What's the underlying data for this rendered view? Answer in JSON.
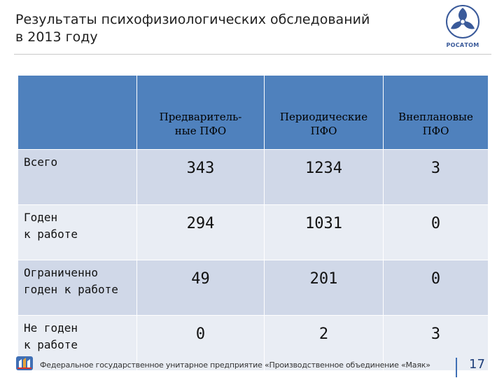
{
  "slide": {
    "title_line1": "Результаты психофизиологических обследований",
    "title_line2": "в 2013 году"
  },
  "logo": {
    "icon": "rosatom-atom-logo",
    "text": "РОСАТОМ",
    "color": "#3a5a9a"
  },
  "table": {
    "header_color": "#4f81bd",
    "row_color_odd": "#d0d8e8",
    "row_color_even": "#e9edf4",
    "columns": [
      {
        "line1": "Предваритель-",
        "line2": "ные ПФО"
      },
      {
        "line1": "Периодические",
        "line2": "ПФО"
      },
      {
        "line1": "Внеплановые",
        "line2": "ПФО"
      }
    ],
    "rows": [
      {
        "label_line1": "Всего",
        "label_line2": "",
        "values": [
          "343",
          "1234",
          "3"
        ]
      },
      {
        "label_line1": "Годен",
        "label_line2": "к работе",
        "values": [
          "294",
          "1031",
          "0"
        ]
      },
      {
        "label_line1": "Ограниченно",
        "label_line2": "годен к работе",
        "values": [
          "49",
          "201",
          "0"
        ]
      },
      {
        "label_line1": "Не годен",
        "label_line2": "к работе",
        "values": [
          "0",
          "2",
          "3"
        ]
      }
    ]
  },
  "footer": {
    "icon": "mayak-logo",
    "text": "Федеральное государственное унитарное предприятие «Производственное объединение «Маяк»",
    "page_number": "17",
    "accent": "#3f6fb5"
  }
}
